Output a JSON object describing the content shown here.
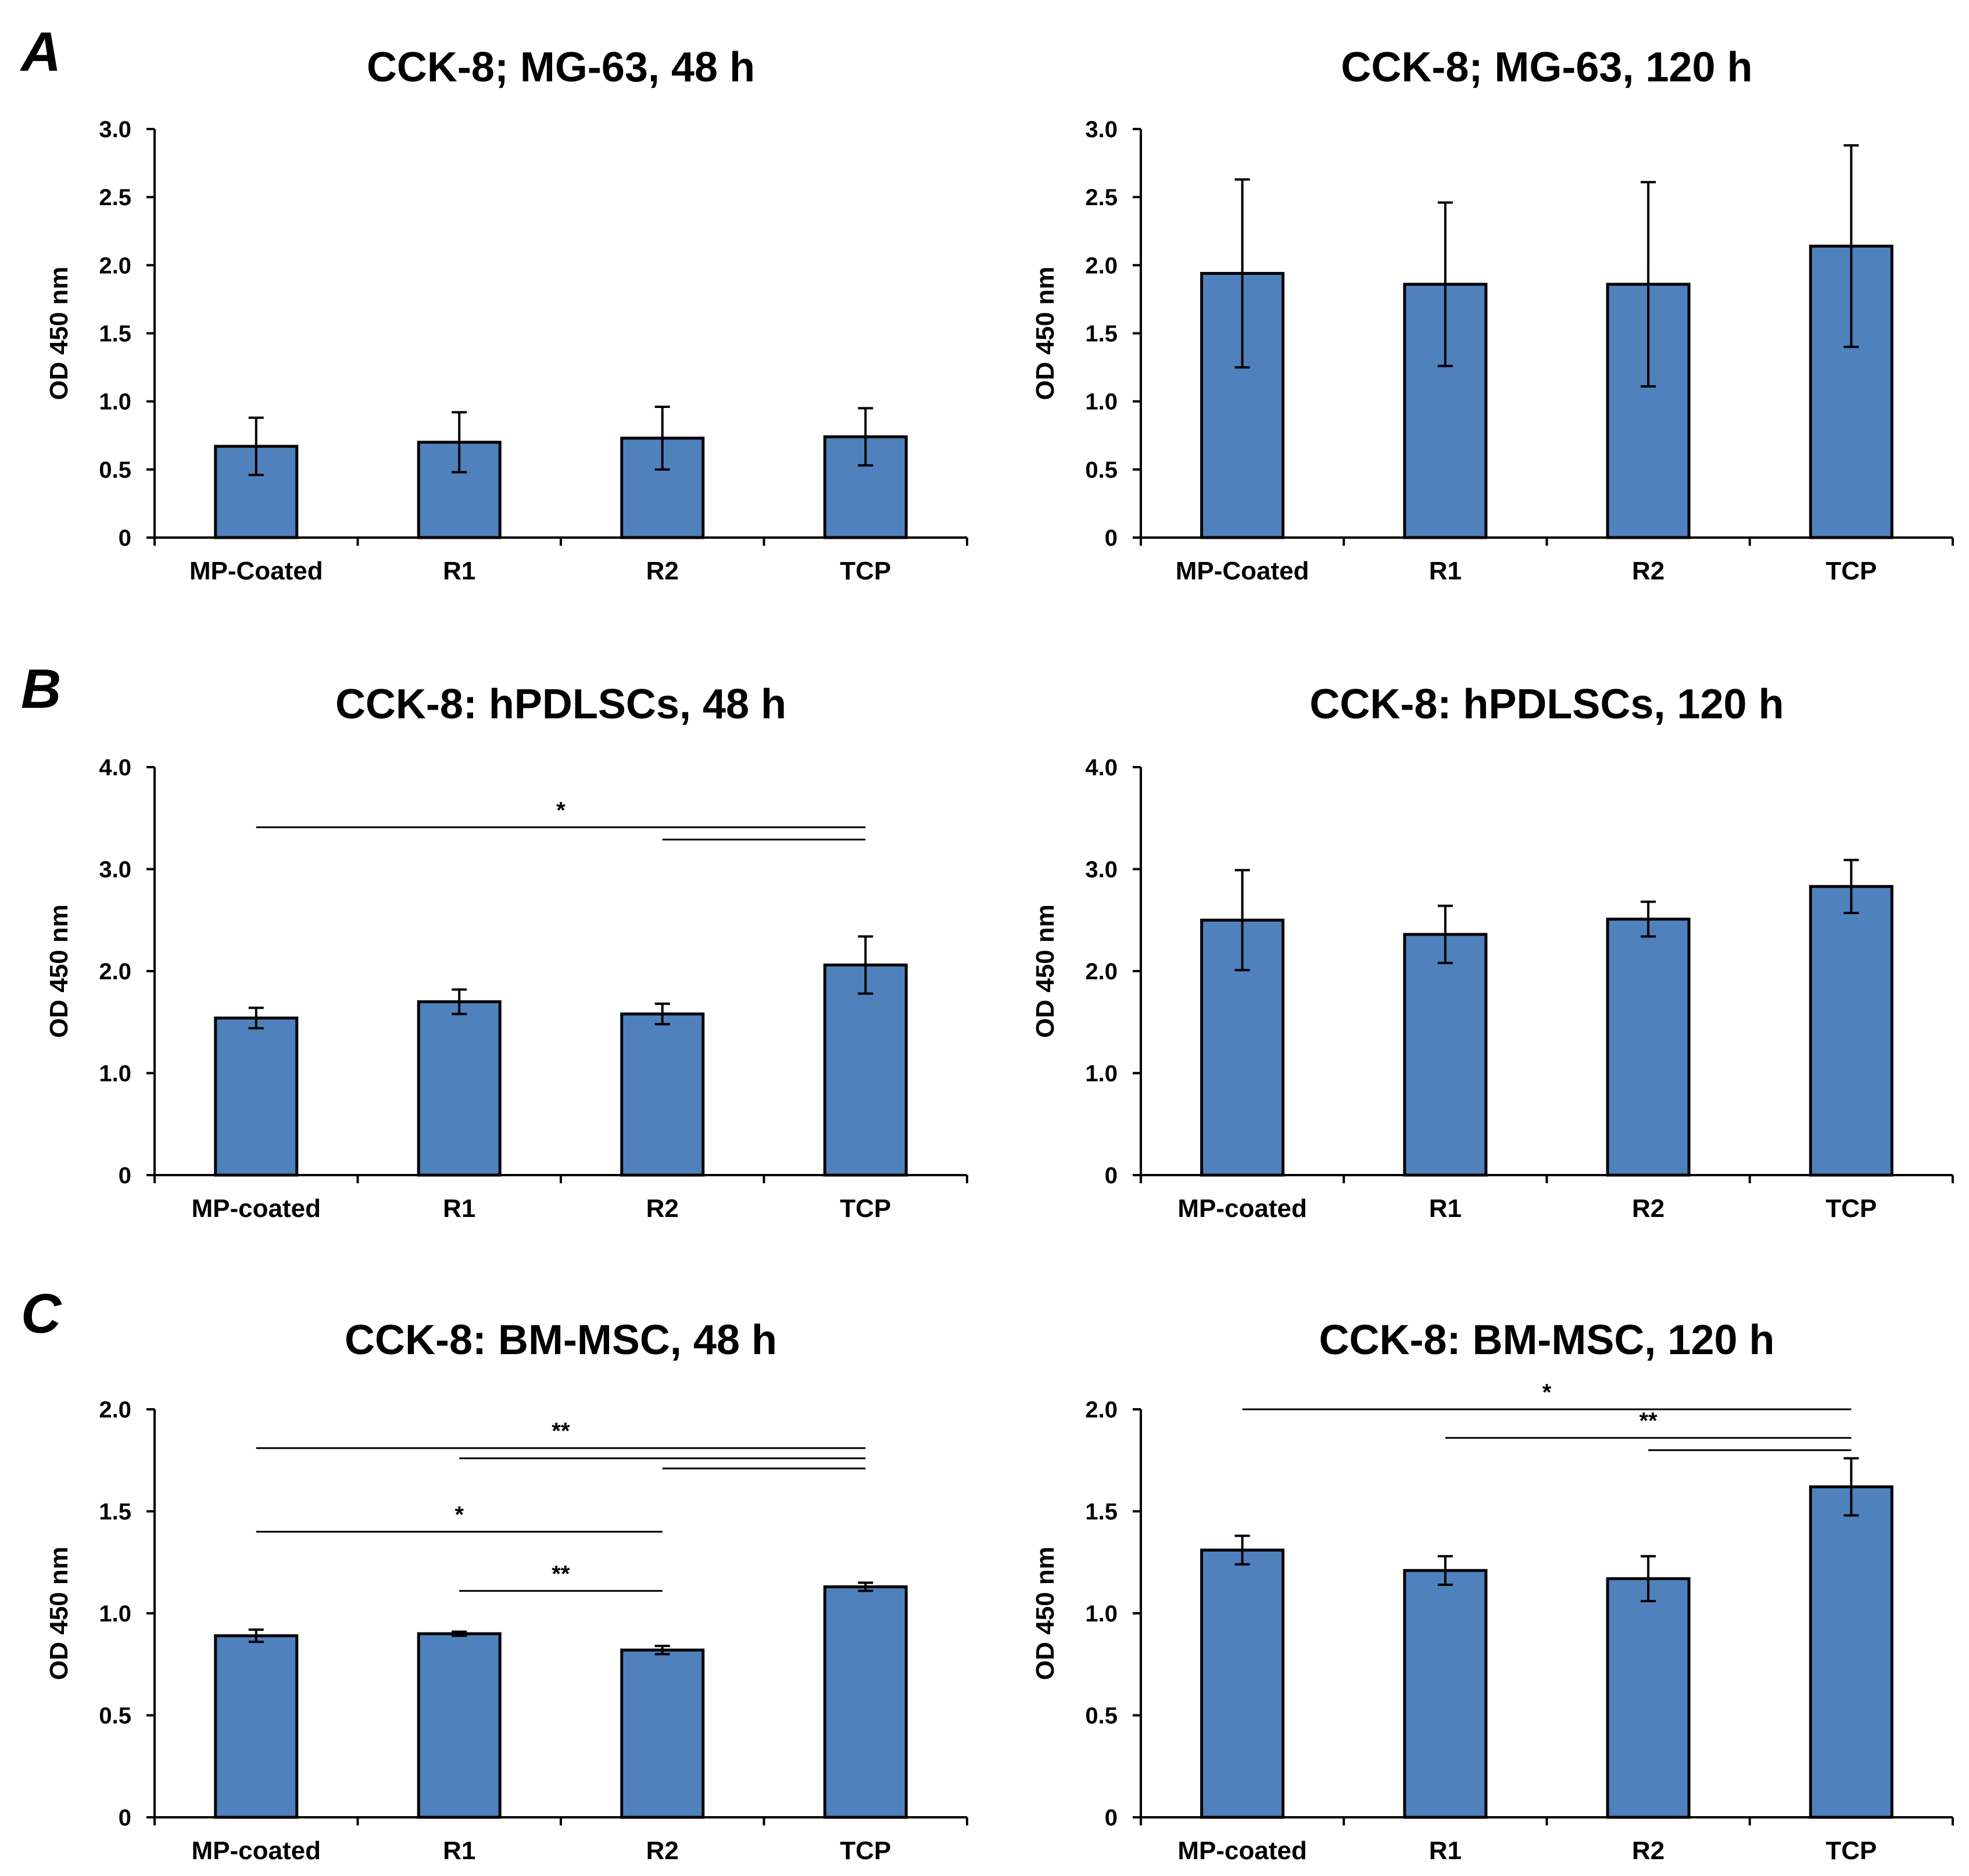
{
  "panel_letters": [
    "A",
    "B",
    "C"
  ],
  "colors": {
    "bar_fill": "#4f81bd",
    "bar_stroke": "#000000",
    "axis": "#000000"
  },
  "chart_data": [
    {
      "panel": "A",
      "type": "bar",
      "title": "CCK-8; MG-63, 48 h",
      "ylabel": "OD 450 nm",
      "xlabel": "",
      "ylim": [
        0,
        3.0
      ],
      "yticks": [
        0,
        0.5,
        1.0,
        1.5,
        2.0,
        2.5,
        3.0
      ],
      "ytick_labels": [
        "0",
        "0.5",
        "1.0",
        "1.5",
        "2.0",
        "2.5",
        "3.0"
      ],
      "categories": [
        "MP-Coated",
        "R1",
        "R2",
        "TCP"
      ],
      "values": [
        0.67,
        0.7,
        0.73,
        0.74
      ],
      "errors": [
        0.21,
        0.22,
        0.23,
        0.21
      ],
      "significance": []
    },
    {
      "panel": "A",
      "type": "bar",
      "title": "CCK-8; MG-63, 120 h",
      "ylabel": "OD 450 nm",
      "xlabel": "",
      "ylim": [
        0,
        3.0
      ],
      "yticks": [
        0,
        0.5,
        1.0,
        1.5,
        2.0,
        2.5,
        3.0
      ],
      "ytick_labels": [
        "0",
        "0.5",
        "1.0",
        "1.5",
        "2.0",
        "2.5",
        "3.0"
      ],
      "categories": [
        "MP-Coated",
        "R1",
        "R2",
        "TCP"
      ],
      "values": [
        1.94,
        1.86,
        1.86,
        2.14
      ],
      "errors": [
        0.69,
        0.6,
        0.75,
        0.74
      ],
      "significance": []
    },
    {
      "panel": "B",
      "type": "bar",
      "title": "CCK-8: hPDLSCs, 48 h",
      "ylabel": "OD 450 nm",
      "xlabel": "",
      "ylim": [
        0,
        4.0
      ],
      "yticks": [
        0,
        1.0,
        2.0,
        3.0,
        4.0
      ],
      "ytick_labels": [
        "0",
        "1.0",
        "2.0",
        "3.0",
        "4.0"
      ],
      "categories": [
        "MP-coated",
        "R1",
        "R2",
        "TCP"
      ],
      "values": [
        1.54,
        1.7,
        1.58,
        2.06
      ],
      "errors": [
        0.1,
        0.12,
        0.1,
        0.28
      ],
      "significance": [
        {
          "from": 0,
          "to": 3,
          "y": 3.41,
          "label": "*"
        },
        {
          "from": 2,
          "to": 3,
          "y": 3.29,
          "label": ""
        }
      ]
    },
    {
      "panel": "B",
      "type": "bar",
      "title": "CCK-8: hPDLSCs, 120 h",
      "ylabel": "OD 450 nm",
      "xlabel": "",
      "ylim": [
        0,
        4.0
      ],
      "yticks": [
        0,
        1.0,
        2.0,
        3.0,
        4.0
      ],
      "ytick_labels": [
        "0",
        "1.0",
        "2.0",
        "3.0",
        "4.0"
      ],
      "categories": [
        "MP-coated",
        "R1",
        "R2",
        "TCP"
      ],
      "values": [
        2.5,
        2.36,
        2.51,
        2.83
      ],
      "errors": [
        0.49,
        0.28,
        0.17,
        0.26
      ],
      "significance": []
    },
    {
      "panel": "C",
      "type": "bar",
      "title": "CCK-8: BM-MSC, 48 h",
      "ylabel": "OD 450 nm",
      "xlabel": "",
      "ylim": [
        0,
        2.0
      ],
      "yticks": [
        0,
        0.5,
        1.0,
        1.5,
        2.0
      ],
      "ytick_labels": [
        "0",
        "0.5",
        "1.0",
        "1.5",
        "2.0"
      ],
      "categories": [
        "MP-coated",
        "R1",
        "R2",
        "TCP"
      ],
      "values": [
        0.89,
        0.9,
        0.82,
        1.13
      ],
      "errors": [
        0.03,
        0.01,
        0.02,
        0.02
      ],
      "significance": [
        {
          "from": 0,
          "to": 3,
          "y": 1.81,
          "label": "**"
        },
        {
          "from": 1,
          "to": 3,
          "y": 1.76,
          "label": ""
        },
        {
          "from": 2,
          "to": 3,
          "y": 1.71,
          "label": ""
        },
        {
          "from": 0,
          "to": 2,
          "y": 1.4,
          "label": "*"
        },
        {
          "from": 1,
          "to": 2,
          "y": 1.11,
          "label": "**"
        }
      ]
    },
    {
      "panel": "C",
      "type": "bar",
      "title": "CCK-8: BM-MSC, 120 h",
      "ylabel": "OD 450 nm",
      "xlabel": "",
      "ylim": [
        0,
        2.0
      ],
      "yticks": [
        0,
        0.5,
        1.0,
        1.5,
        2.0
      ],
      "ytick_labels": [
        "0",
        "0.5",
        "1.0",
        "1.5",
        "2.0"
      ],
      "categories": [
        "MP-coated",
        "R1",
        "R2",
        "TCP"
      ],
      "values": [
        1.31,
        1.21,
        1.17,
        1.62
      ],
      "errors": [
        0.07,
        0.07,
        0.11,
        0.14
      ],
      "significance": [
        {
          "from": 0,
          "to": 3,
          "y": 2.0,
          "label": "*"
        },
        {
          "from": 1,
          "to": 3,
          "y": 1.86,
          "label": "**"
        },
        {
          "from": 2,
          "to": 3,
          "y": 1.8,
          "label": ""
        }
      ]
    }
  ]
}
